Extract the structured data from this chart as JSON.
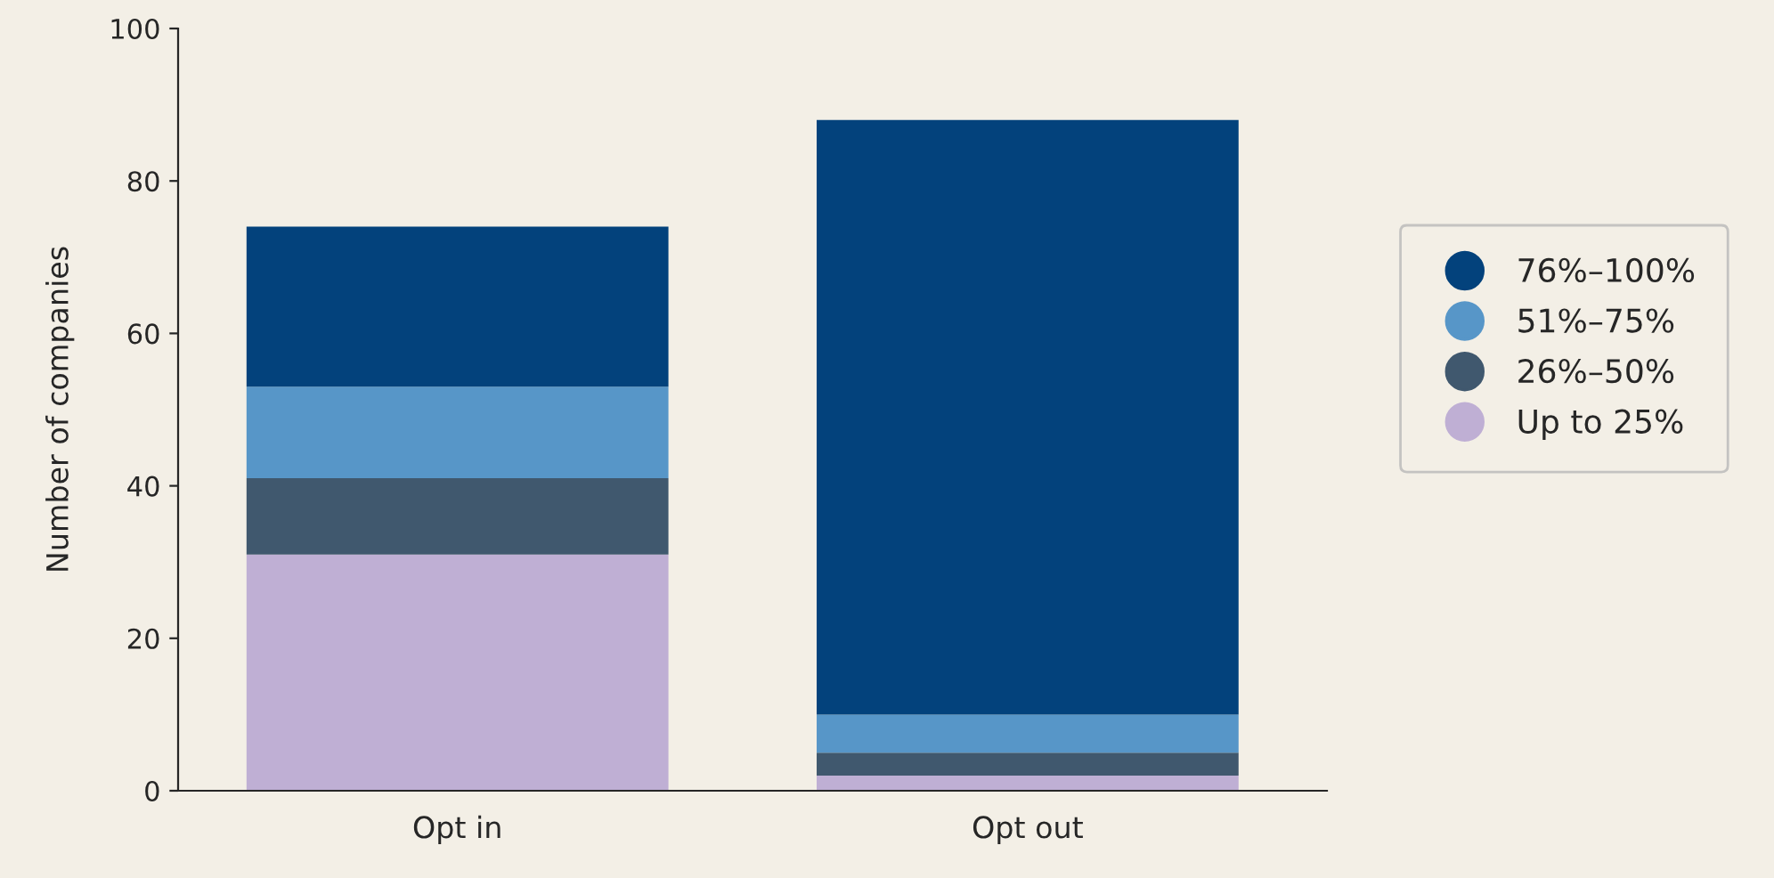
{
  "chart_data": {
    "type": "bar",
    "stacked": true,
    "ylabel": "Number of companies",
    "categories": [
      "Opt in",
      "Opt out"
    ],
    "series": [
      {
        "name": "Up to 25%",
        "color": "#bfafd4",
        "values": [
          31,
          2
        ]
      },
      {
        "name": "26%–50%",
        "color": "#40586e",
        "values": [
          10,
          3
        ]
      },
      {
        "name": "51%–75%",
        "color": "#5796c8",
        "values": [
          12,
          5
        ]
      },
      {
        "name": "76%–100%",
        "color": "#03427c",
        "values": [
          21,
          78
        ]
      }
    ],
    "ylim": [
      0,
      100
    ],
    "yticks": [
      0,
      20,
      40,
      60,
      80,
      100
    ],
    "grid": false,
    "legend": "right",
    "marker": "circle"
  }
}
